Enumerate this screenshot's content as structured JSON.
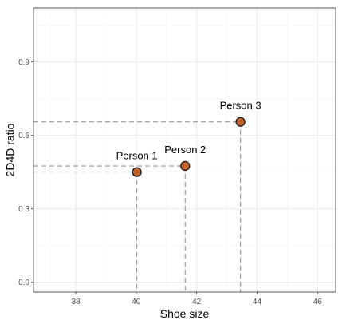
{
  "chart_data": {
    "type": "scatter",
    "xlabel": "Shoe size",
    "ylabel": "2D4D ratio",
    "xlim": [
      36.6,
      46.6
    ],
    "ylim": [
      -0.04,
      1.12
    ],
    "x_ticks": [
      38,
      40,
      42,
      44,
      46
    ],
    "y_ticks": [
      0.0,
      0.3,
      0.6,
      0.9
    ],
    "x_tick_labels": [
      "38",
      "40",
      "42",
      "44",
      "46"
    ],
    "y_tick_labels": [
      "0.0",
      "0.3",
      "0.6",
      "0.9"
    ],
    "grid": true,
    "points": [
      {
        "label": "Person 1",
        "x": 40.02,
        "y": 0.45
      },
      {
        "label": "Person 2",
        "x": 41.62,
        "y": 0.475
      },
      {
        "label": "Person 3",
        "x": 43.45,
        "y": 0.655
      }
    ],
    "colors": {
      "point_fill": "#c0622a",
      "point_stroke": "#1a1a1a",
      "guide_line": "#8a8a8a",
      "grid": "#ebebeb",
      "panel_border": "#333333"
    }
  }
}
